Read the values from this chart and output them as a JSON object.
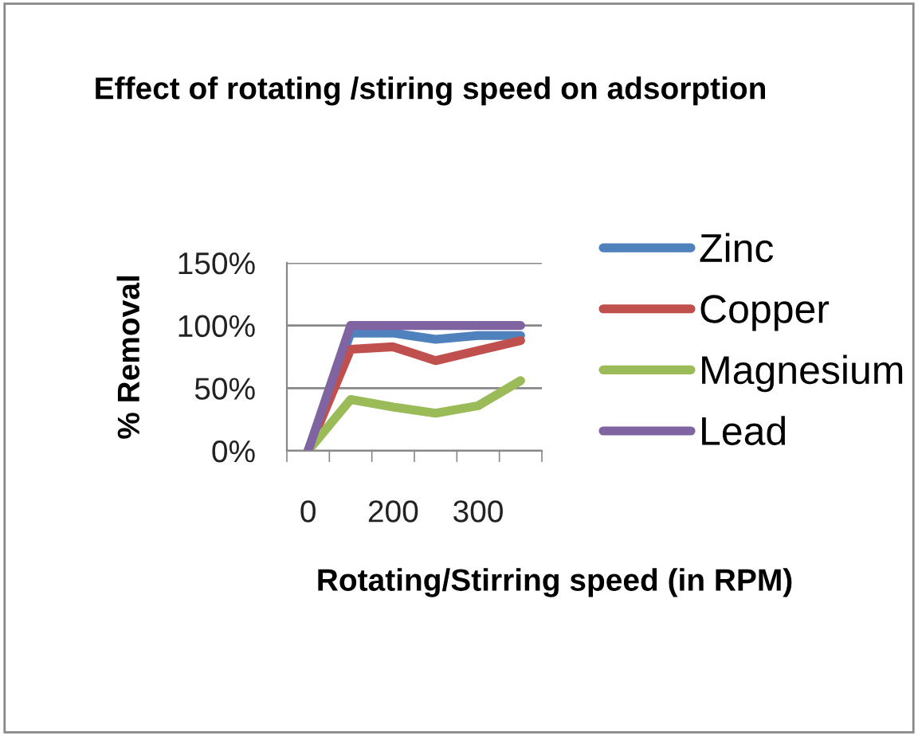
{
  "chart_data": {
    "type": "line",
    "title": "Effect of rotating /stiring speed on adsorption",
    "xlabel": "Rotating/Stirring speed (in RPM)",
    "ylabel": "% Removal",
    "categories": [
      "0",
      null,
      "200",
      null,
      "300",
      null
    ],
    "series": [
      {
        "name": "Zinc",
        "color": "#4f81bd",
        "values": [
          0,
          94,
          94,
          89,
          92,
          92
        ]
      },
      {
        "name": "Copper",
        "color": "#c0504d",
        "values": [
          0,
          81,
          83,
          72,
          80,
          88
        ]
      },
      {
        "name": "Magnesium",
        "color": "#9bbb59",
        "values": [
          0,
          41,
          35,
          30,
          36,
          56
        ]
      },
      {
        "name": "Lead",
        "color": "#8064a2",
        "values": [
          0,
          100,
          100,
          100,
          100,
          100
        ]
      }
    ],
    "ylim": [
      0,
      150
    ],
    "yticks": [
      {
        "value": 0,
        "label": "0%"
      },
      {
        "value": 50,
        "label": "50%"
      },
      {
        "value": 100,
        "label": "100%"
      },
      {
        "value": 150,
        "label": "150%"
      }
    ],
    "grid": "y",
    "legend": "right",
    "marker": "none",
    "line_style": "solid"
  }
}
